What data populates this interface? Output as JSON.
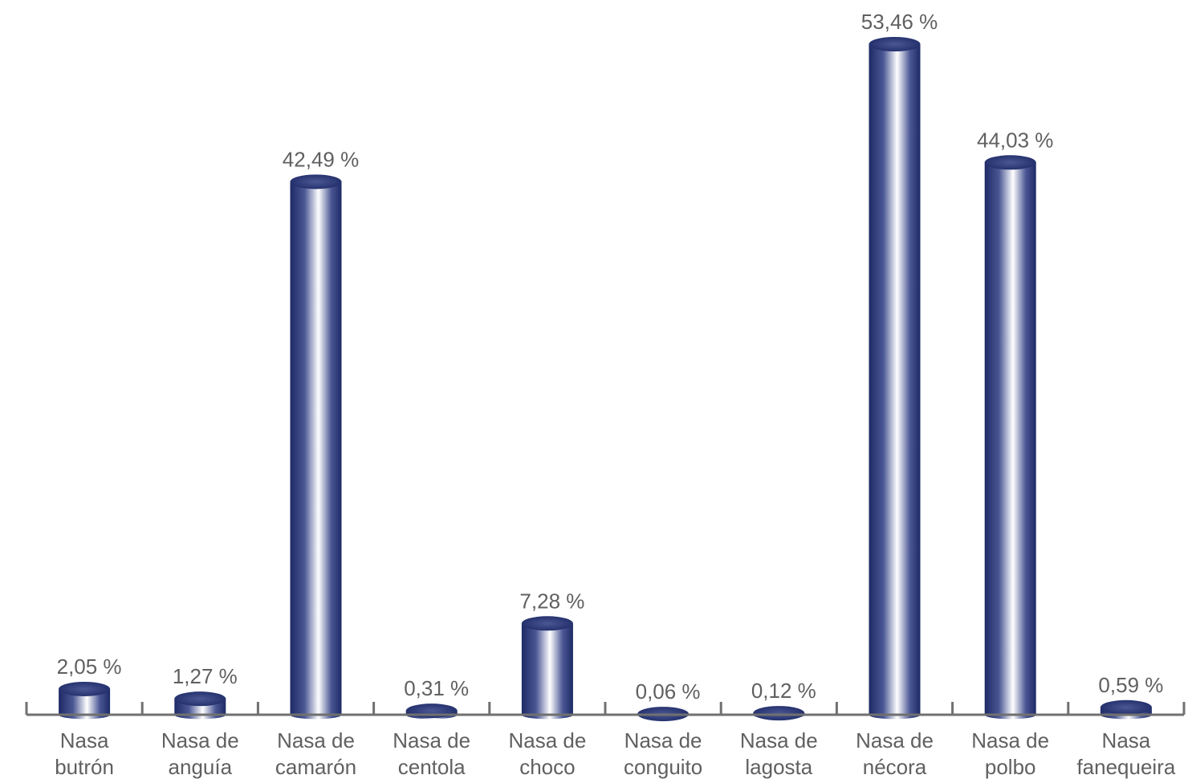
{
  "chart_data": {
    "type": "bar",
    "style": "3d-cylinder",
    "categories": [
      [
        "Nasa",
        "butrón"
      ],
      [
        "Nasa de",
        "anguía"
      ],
      [
        "Nasa de",
        "camarón"
      ],
      [
        "Nasa de",
        "centola"
      ],
      [
        "Nasa de",
        "choco"
      ],
      [
        "Nasa de",
        "conguito"
      ],
      [
        "Nasa de",
        "lagosta"
      ],
      [
        "Nasa de",
        "nécora"
      ],
      [
        "Nasa de",
        "polbo"
      ],
      [
        "Nasa",
        "fanequeira"
      ]
    ],
    "values": [
      2.05,
      1.27,
      42.49,
      0.31,
      7.28,
      0.06,
      0.12,
      53.46,
      44.03,
      0.59
    ],
    "value_labels": [
      "2,05 %",
      "1,27 %",
      "42,49 %",
      "0,31 %",
      "7,28 %",
      "0,06 %",
      "0,12 %",
      "53,46 %",
      "44,03 %",
      "0,59 %"
    ],
    "title": "",
    "xlabel": "",
    "ylabel": "",
    "ylim": [
      0,
      53.46
    ],
    "grid": false,
    "legend": "none",
    "colors": {
      "bar_dark": "#1e2a66",
      "bar_mid": "#4a5794",
      "bar_light": "#ffffff",
      "axis": "#707070",
      "text": "#606060"
    }
  }
}
